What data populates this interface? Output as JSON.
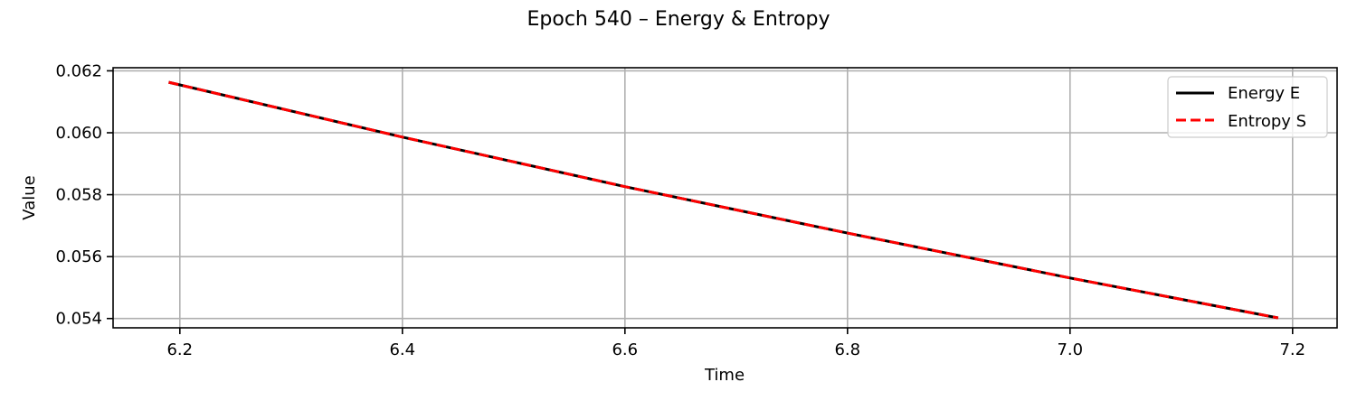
{
  "chart_data": {
    "type": "line",
    "title": "Epoch 540 – Energy & Entropy",
    "xlabel": "Time",
    "ylabel": "Value",
    "xlim": [
      6.14,
      7.24
    ],
    "ylim": [
      0.0537,
      0.0621
    ],
    "xticks": [
      6.2,
      6.4,
      6.6,
      6.8,
      7.0,
      7.2
    ],
    "xtick_labels": [
      "6.2",
      "6.4",
      "6.6",
      "6.8",
      "7.0",
      "7.2"
    ],
    "yticks": [
      0.054,
      0.056,
      0.058,
      0.06,
      0.062
    ],
    "ytick_labels": [
      "0.054",
      "0.056",
      "0.058",
      "0.060",
      "0.062"
    ],
    "grid": true,
    "legend_position": "top-right",
    "series": [
      {
        "name": "Energy E",
        "color": "#000000",
        "style": "solid",
        "x": [
          6.19,
          6.4,
          6.6,
          6.8,
          7.0,
          7.187
        ],
        "y": [
          0.06163,
          0.05986,
          0.05826,
          0.05676,
          0.05531,
          0.05402
        ]
      },
      {
        "name": "Entropy S",
        "color": "#ff0000",
        "style": "dashed",
        "x": [
          6.19,
          6.4,
          6.6,
          6.8,
          7.0,
          7.187
        ],
        "y": [
          0.06163,
          0.05986,
          0.05826,
          0.05676,
          0.05531,
          0.05402
        ]
      }
    ]
  }
}
